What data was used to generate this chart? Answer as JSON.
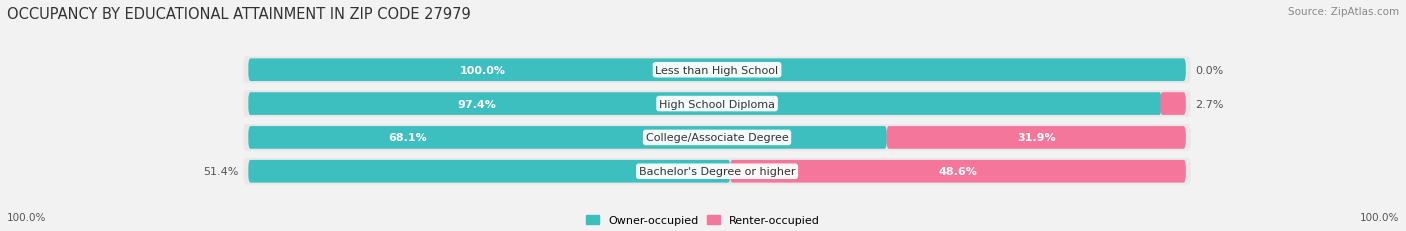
{
  "title": "OCCUPANCY BY EDUCATIONAL ATTAINMENT IN ZIP CODE 27979",
  "source": "Source: ZipAtlas.com",
  "categories": [
    "Less than High School",
    "High School Diploma",
    "College/Associate Degree",
    "Bachelor's Degree or higher"
  ],
  "owner_pct": [
    100.0,
    97.4,
    68.1,
    51.4
  ],
  "renter_pct": [
    0.0,
    2.7,
    31.9,
    48.6
  ],
  "owner_color": "#3DBFBF",
  "renter_color": "#F4769A",
  "bg_color": "#f2f2f2",
  "row_bg_color": "#e8e8e8",
  "title_fontsize": 10.5,
  "source_fontsize": 7.5,
  "label_fontsize": 8,
  "pct_fontsize": 8,
  "axis_label_left": "100.0%",
  "axis_label_right": "100.0%",
  "legend_owner": "Owner-occupied",
  "legend_renter": "Renter-occupied"
}
